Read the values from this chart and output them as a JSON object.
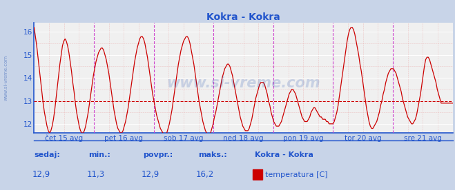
{
  "title": "Kokra - Kokra",
  "title_color": "#2255cc",
  "bg_color": "#c8d4e8",
  "plot_bg_color": "#f0f0f0",
  "line_color": "#cc0000",
  "vline_color": "#cc44cc",
  "hline_color": "#cc0000",
  "hline_y": 13.0,
  "ylim": [
    11.6,
    16.4
  ],
  "yticks": [
    12,
    13,
    14,
    15,
    16
  ],
  "tick_color": "#2255cc",
  "xlabels": [
    "čet 15 avg",
    "pet 16 avg",
    "sob 17 avg",
    "ned 18 avg",
    "pon 19 avg",
    "tor 20 avg",
    "sre 21 avg"
  ],
  "watermark": "www.si-vreme.com",
  "watermark_color": "#1144aa",
  "sidebar_text": "www.si-vreme.com",
  "legend_station": "Kokra - Kokra",
  "legend_param": "temperatura [C]",
  "legend_color": "#cc0000",
  "stats_labels": [
    "sedaj:",
    "min.:",
    "povpr.:",
    "maks.:"
  ],
  "stats_values": [
    "12,9",
    "11,3",
    "12,9",
    "16,2"
  ],
  "stats_color": "#2255cc",
  "days": 7,
  "temp_data": [
    16.2,
    15.8,
    15.4,
    14.9,
    14.4,
    13.9,
    13.4,
    12.9,
    12.5,
    12.2,
    11.9,
    11.7,
    11.6,
    11.7,
    11.9,
    12.2,
    12.6,
    13.1,
    13.6,
    14.1,
    14.6,
    15.0,
    15.4,
    15.6,
    15.7,
    15.6,
    15.4,
    15.1,
    14.7,
    14.3,
    13.8,
    13.4,
    12.9,
    12.5,
    12.2,
    11.9,
    11.7,
    11.6,
    11.6,
    11.7,
    11.9,
    12.2,
    12.5,
    12.9,
    13.3,
    13.7,
    14.1,
    14.4,
    14.7,
    14.9,
    15.1,
    15.2,
    15.3,
    15.3,
    15.2,
    15.0,
    14.8,
    14.5,
    14.2,
    13.8,
    13.4,
    13.0,
    12.6,
    12.3,
    12.0,
    11.8,
    11.7,
    11.6,
    11.6,
    11.7,
    11.9,
    12.1,
    12.4,
    12.7,
    13.1,
    13.5,
    13.9,
    14.3,
    14.7,
    15.0,
    15.3,
    15.5,
    15.7,
    15.8,
    15.8,
    15.7,
    15.5,
    15.2,
    14.9,
    14.5,
    14.1,
    13.7,
    13.3,
    13.0,
    12.7,
    12.4,
    12.2,
    12.0,
    11.8,
    11.7,
    11.6,
    11.5,
    11.5,
    11.6,
    11.8,
    12.0,
    12.3,
    12.6,
    13.0,
    13.4,
    13.8,
    14.2,
    14.6,
    14.9,
    15.2,
    15.4,
    15.6,
    15.7,
    15.8,
    15.8,
    15.7,
    15.5,
    15.2,
    14.9,
    14.6,
    14.2,
    13.8,
    13.4,
    13.0,
    12.7,
    12.4,
    12.1,
    11.9,
    11.7,
    11.6,
    11.5,
    11.5,
    11.6,
    11.8,
    12.0,
    12.3,
    12.5,
    12.8,
    13.1,
    13.4,
    13.7,
    14.0,
    14.2,
    14.4,
    14.5,
    14.6,
    14.6,
    14.5,
    14.3,
    14.1,
    13.8,
    13.5,
    13.2,
    12.9,
    12.6,
    12.3,
    12.1,
    11.9,
    11.8,
    11.7,
    11.7,
    11.7,
    11.8,
    12.0,
    12.2,
    12.5,
    12.8,
    13.1,
    13.3,
    13.5,
    13.7,
    13.8,
    13.8,
    13.8,
    13.7,
    13.5,
    13.3,
    13.0,
    12.8,
    12.5,
    12.3,
    12.1,
    12.0,
    11.9,
    11.9,
    11.9,
    12.0,
    12.1,
    12.3,
    12.5,
    12.7,
    12.9,
    13.1,
    13.3,
    13.4,
    13.5,
    13.5,
    13.4,
    13.3,
    13.1,
    12.9,
    12.7,
    12.5,
    12.3,
    12.2,
    12.1,
    12.1,
    12.1,
    12.2,
    12.3,
    12.5,
    12.6,
    12.7,
    12.7,
    12.6,
    12.5,
    12.4,
    12.3,
    12.3,
    12.2,
    12.2,
    12.2,
    12.1,
    12.1,
    12.0,
    12.0,
    12.0,
    12.0,
    12.1,
    12.3,
    12.5,
    12.8,
    13.2,
    13.6,
    14.0,
    14.4,
    14.8,
    15.2,
    15.6,
    15.9,
    16.1,
    16.2,
    16.2,
    16.1,
    15.9,
    15.6,
    15.3,
    15.0,
    14.6,
    14.3,
    13.9,
    13.5,
    13.1,
    12.7,
    12.4,
    12.1,
    11.9,
    11.8,
    11.8,
    11.9,
    12.0,
    12.1,
    12.3,
    12.5,
    12.8,
    13.0,
    13.3,
    13.5,
    13.8,
    14.0,
    14.2,
    14.3,
    14.4,
    14.4,
    14.4,
    14.3,
    14.2,
    14.0,
    13.8,
    13.6,
    13.4,
    13.1,
    12.9,
    12.7,
    12.5,
    12.3,
    12.2,
    12.1,
    12.0,
    12.0,
    12.1,
    12.2,
    12.4,
    12.7,
    13.0,
    13.3,
    13.7,
    14.1,
    14.5,
    14.8,
    14.9,
    14.9,
    14.8,
    14.6,
    14.4,
    14.2,
    14.0,
    13.8,
    13.5,
    13.3,
    13.1,
    12.9,
    12.9,
    12.9,
    12.9,
    12.9,
    12.9,
    12.9,
    12.9,
    12.9,
    12.9
  ]
}
